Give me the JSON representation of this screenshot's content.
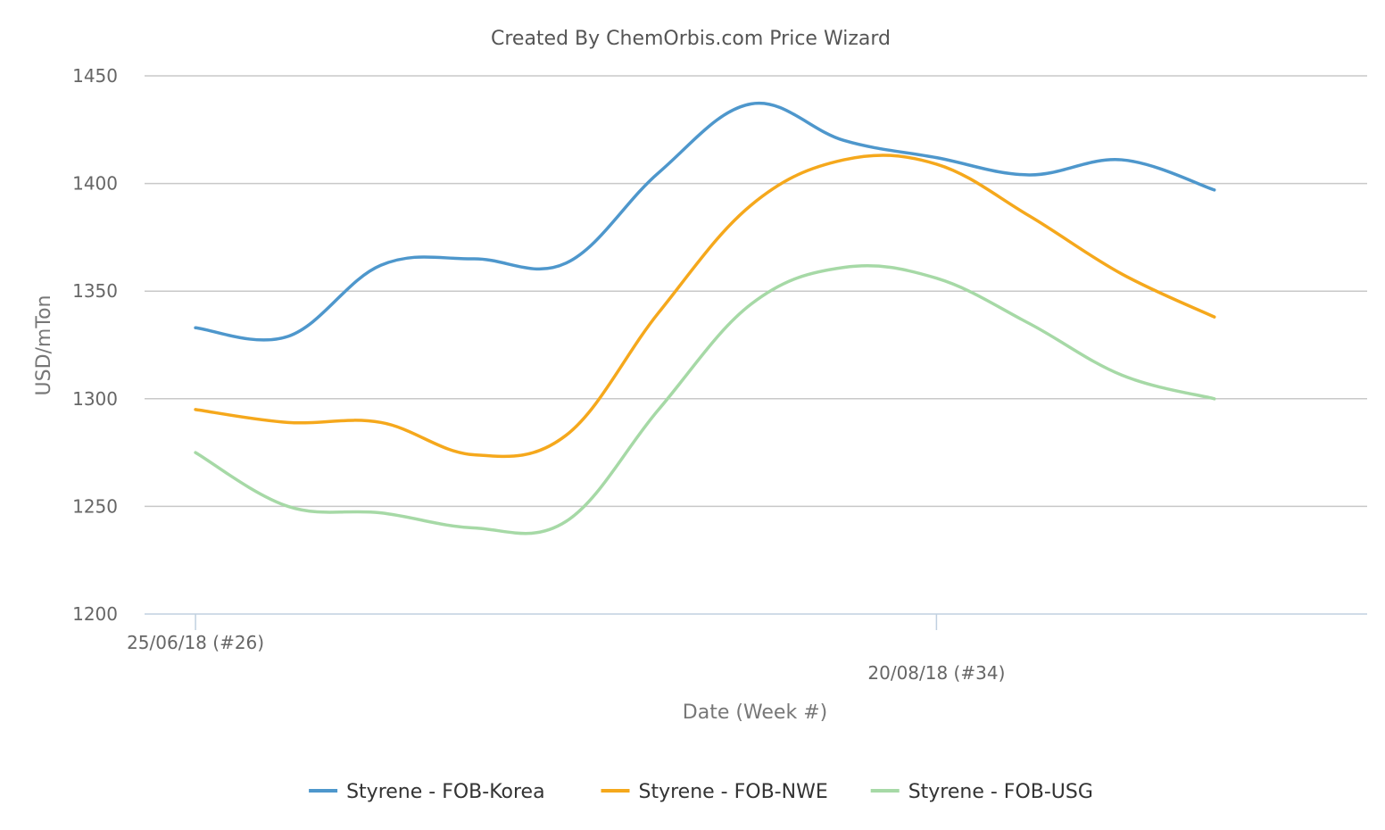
{
  "chart_data": {
    "type": "line",
    "title": "Created By ChemOrbis.com Price Wizard",
    "xlabel": "Date (Week #)",
    "ylabel": "USD/mTon",
    "ylim": [
      1200,
      1450
    ],
    "yticks": [
      "1200",
      "1250",
      "1300",
      "1350",
      "1400",
      "1450"
    ],
    "x_tick_labels": [
      {
        "week": 26,
        "label": "25/06/18 (#26)"
      },
      {
        "week": 34,
        "label": "20/08/18 (#34)"
      }
    ],
    "x": [
      26,
      27,
      28,
      29,
      30,
      31,
      32,
      33,
      34,
      35,
      36,
      37
    ],
    "grid": true,
    "legend_position": "bottom",
    "series": [
      {
        "name": "Styrene - FOB-Korea",
        "color": "#4e97cc",
        "values": [
          1333,
          1329,
          1362,
          1365,
          1363,
          1405,
          1437,
          1420,
          1412,
          1404,
          1411,
          1397
        ]
      },
      {
        "name": "Styrene - FOB-NWE",
        "color": "#f5a81c",
        "values": [
          1295,
          1289,
          1289,
          1274,
          1283,
          1340,
          1390,
          1411,
          1409,
          1385,
          1358,
          1338
        ]
      },
      {
        "name": "Styrene - FOB-USG",
        "color": "#a6d9a6",
        "values": [
          1275,
          1250,
          1247,
          1240,
          1243,
          1295,
          1344,
          1361,
          1356,
          1335,
          1311,
          1300
        ]
      }
    ]
  }
}
